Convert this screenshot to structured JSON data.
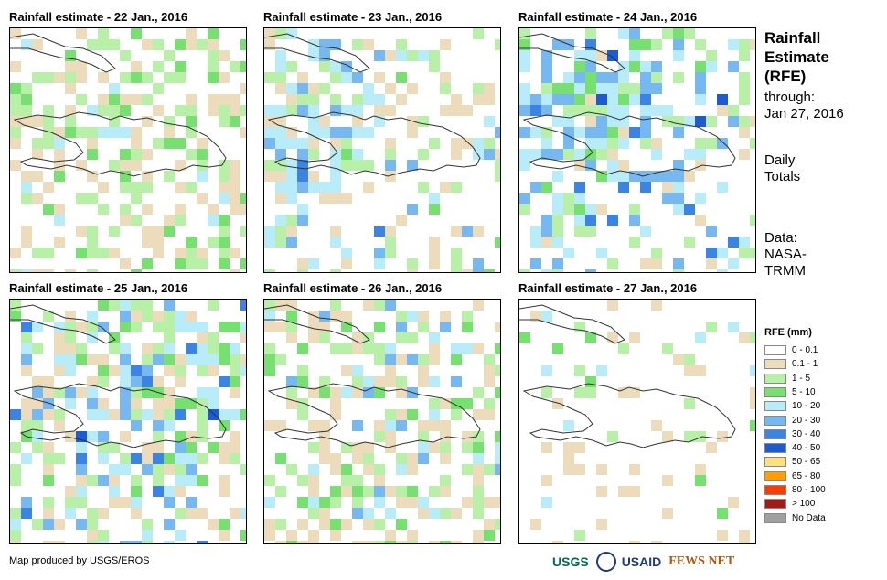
{
  "panels": [
    {
      "title": "Rainfall estimate - 22 Jan., 2016"
    },
    {
      "title": "Rainfall estimate - 23 Jan., 2016"
    },
    {
      "title": "Rainfall estimate - 24 Jan., 2016"
    },
    {
      "title": "Rainfall estimate - 25 Jan., 2016"
    },
    {
      "title": "Rainfall estimate - 26 Jan., 2016"
    },
    {
      "title": "Rainfall estimate - 27 Jan., 2016"
    }
  ],
  "sidebar": {
    "title_line1": "Rainfall",
    "title_line2": "Estimate",
    "title_line3": "(RFE)",
    "through_label": "through:",
    "through_date": "Jan 27, 2016",
    "totals_line1": "Daily",
    "totals_line2": "Totals",
    "data_label": "Data:",
    "data_source_line1": "NASA-",
    "data_source_line2": "TRMM"
  },
  "legend": {
    "title": "RFE (mm)",
    "classes": [
      {
        "label": "0 - 0.1",
        "color": "#ffffff"
      },
      {
        "label": "0.1 - 1",
        "color": "#ecdcbc"
      },
      {
        "label": "1 - 5",
        "color": "#b8f0a8"
      },
      {
        "label": "5 - 10",
        "color": "#78e070"
      },
      {
        "label": "10 - 20",
        "color": "#b8ecf8"
      },
      {
        "label": "20 - 30",
        "color": "#78b8f0"
      },
      {
        "label": "30 - 40",
        "color": "#3c84e4"
      },
      {
        "label": "40 - 50",
        "color": "#1c5cd0"
      },
      {
        "label": "50 - 65",
        "color": "#ffe080"
      },
      {
        "label": "65 - 80",
        "color": "#ffa000"
      },
      {
        "label": "80 - 100",
        "color": "#ff3c00"
      },
      {
        "label": "> 100",
        "color": "#a01c1c"
      },
      {
        "label": "No Data",
        "color": "#a0a0a0"
      }
    ]
  },
  "footer": {
    "credit": "Map produced by USGS/EROS",
    "logos": [
      "USGS",
      "USAID",
      "FEWS NET"
    ]
  }
}
